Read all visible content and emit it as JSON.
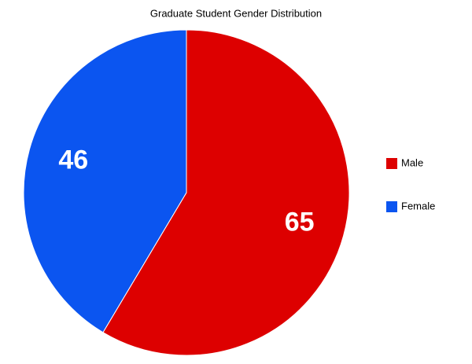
{
  "chart_data": {
    "type": "pie",
    "title": "Graduate Student Gender Distribution",
    "categories": [
      "Male",
      "Female"
    ],
    "values": [
      65,
      46
    ],
    "colors": [
      "#dd0000",
      "#0b55f0"
    ],
    "legend": "right"
  }
}
